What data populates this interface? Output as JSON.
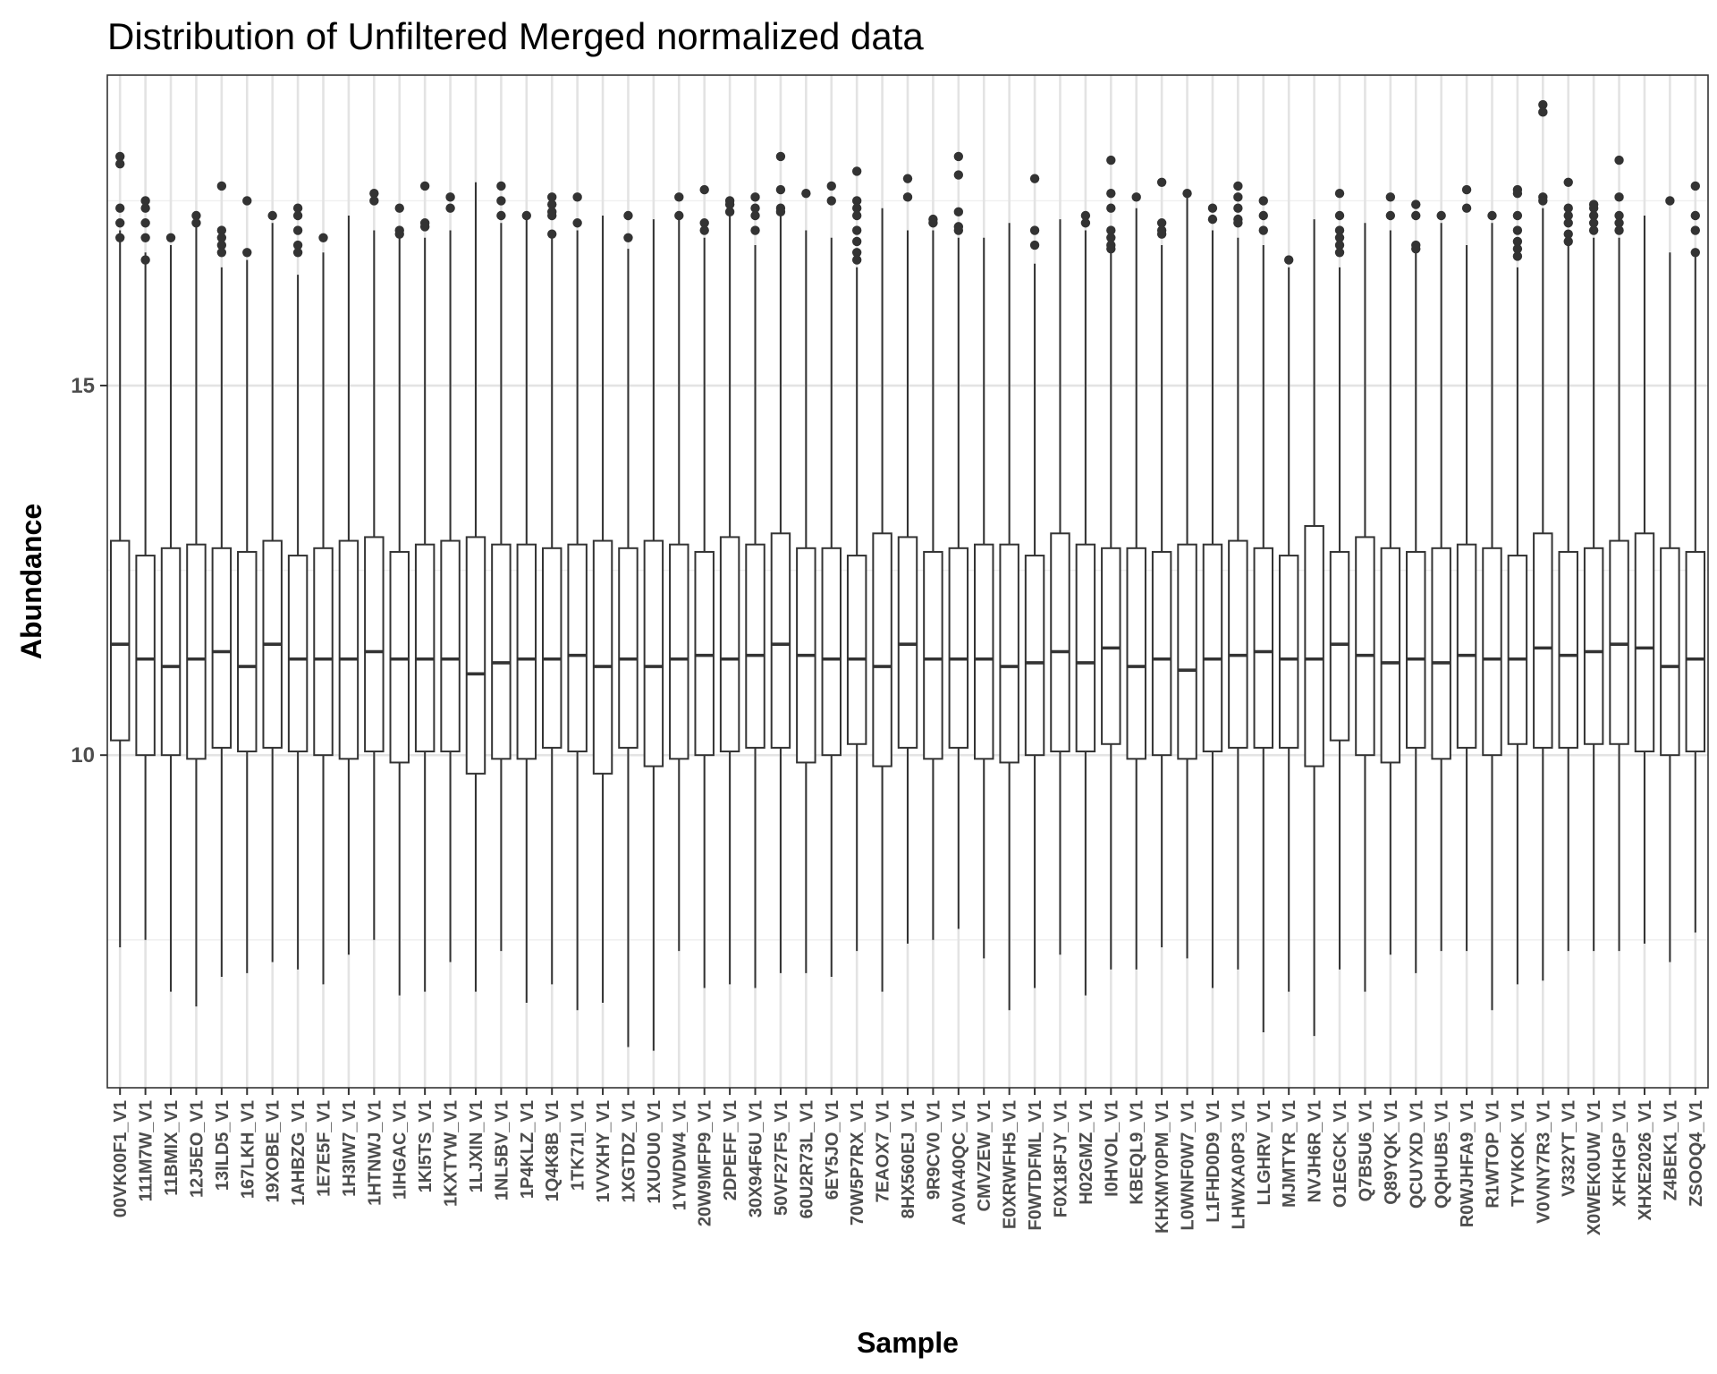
{
  "chart_data": {
    "type": "boxplot",
    "title": "Distribution of Unfiltered Merged normalized data",
    "xlabel": "Sample",
    "ylabel": "Abundance",
    "ylim": [
      5.5,
      19.2
    ],
    "yticks": [
      10,
      15
    ],
    "grid": true,
    "categories": [
      "00VK00F1_V1",
      "111M7W_V1",
      "11BMIX_V1",
      "12J5EO_V1",
      "13ILD5_V1",
      "167LKH_V1",
      "19XOBE_V1",
      "1AHBZG_V1",
      "1E7E5F_V1",
      "1H3IW7_V1",
      "1HTNWJ_V1",
      "1IHGAC_V1",
      "1KI5TS_V1",
      "1KXTYW_V1",
      "1LJXIN_V1",
      "1NL5BV_V1",
      "1P4KLZ_V1",
      "1Q4K8B_V1",
      "1TK71I_V1",
      "1VVXHY_V1",
      "1XGTDZ_V1",
      "1XUOU0_V1",
      "1YWDW4_V1",
      "20W9MFP9_V1",
      "2DPEFF_V1",
      "30X94F6U_V1",
      "50VF27F5_V1",
      "60U2R73L_V1",
      "6EY5JO_V1",
      "70W5P7RX_V1",
      "7EAOX7_V1",
      "8HX560EJ_V1",
      "9R9CV0_V1",
      "A0VA40QC_V1",
      "CMVZEW_V1",
      "E0XRWFH5_V1",
      "F0WTDFML_V1",
      "F0X18FJY_V1",
      "H02GMZ_V1",
      "I0HVOL_V1",
      "KBEQL9_V1",
      "KHXMY0PM_V1",
      "L0WNF0W7_V1",
      "L1FHD0D9_V1",
      "LHWXA0P3_V1",
      "LLGHRV_V1",
      "MJMTYR_V1",
      "NVJH6R_V1",
      "O1EGCK_V1",
      "Q7B5U6_V1",
      "Q89YQK_V1",
      "QCUYXD_V1",
      "QQHUB5_V1",
      "R0WJHFA9_V1",
      "R1WTOP_V1",
      "TYVKOK_V1",
      "V0VNY7R3_V1",
      "V332YT_V1",
      "X0WEK0UW_V1",
      "XFKHGP_V1",
      "XHXE2026_V1",
      "Z4BEK1_V1",
      "ZSOOQ4_V1"
    ],
    "series": [
      {
        "stats": [
          {
            "low": 7.4,
            "q1": 10.2,
            "median": 11.5,
            "q3": 12.9,
            "high": 17.1,
            "outliers": [
              18.0,
              18.1,
              17.4,
              17.2,
              17.0
            ]
          },
          {
            "low": 7.5,
            "q1": 10.0,
            "median": 11.3,
            "q3": 12.7,
            "high": 16.8,
            "outliers": [
              17.5,
              17.4,
              17.2,
              17.0,
              16.7
            ]
          },
          {
            "low": 6.8,
            "q1": 10.0,
            "median": 11.2,
            "q3": 12.8,
            "high": 16.9,
            "outliers": [
              17.0
            ]
          },
          {
            "low": 6.6,
            "q1": 9.95,
            "median": 11.3,
            "q3": 12.85,
            "high": 17.2,
            "outliers": [
              17.3,
              17.2
            ]
          },
          {
            "low": 7.0,
            "q1": 10.1,
            "median": 11.4,
            "q3": 12.8,
            "high": 16.6,
            "outliers": [
              17.7,
              17.1,
              17.0,
              16.9,
              16.8
            ]
          },
          {
            "low": 7.05,
            "q1": 10.05,
            "median": 11.2,
            "q3": 12.75,
            "high": 16.7,
            "outliers": [
              17.5,
              16.8
            ]
          },
          {
            "low": 7.2,
            "q1": 10.1,
            "median": 11.5,
            "q3": 12.9,
            "high": 17.2,
            "outliers": [
              17.3
            ]
          },
          {
            "low": 7.1,
            "q1": 10.05,
            "median": 11.3,
            "q3": 12.7,
            "high": 16.5,
            "outliers": [
              17.4,
              17.3,
              17.1,
              16.9,
              16.8
            ]
          },
          {
            "low": 6.9,
            "q1": 10.0,
            "median": 11.3,
            "q3": 12.8,
            "high": 16.8,
            "outliers": [
              17.0
            ]
          },
          {
            "low": 7.3,
            "q1": 9.95,
            "median": 11.3,
            "q3": 12.9,
            "high": 17.3,
            "outliers": []
          },
          {
            "low": 7.5,
            "q1": 10.05,
            "median": 11.4,
            "q3": 12.95,
            "high": 17.1,
            "outliers": [
              17.6,
              17.5
            ]
          },
          {
            "low": 6.75,
            "q1": 9.9,
            "median": 11.3,
            "q3": 12.75,
            "high": 17.1,
            "outliers": [
              17.4,
              17.1,
              17.05
            ]
          },
          {
            "low": 6.8,
            "q1": 10.05,
            "median": 11.3,
            "q3": 12.85,
            "high": 17.0,
            "outliers": [
              17.7,
              17.2,
              17.15
            ]
          },
          {
            "low": 7.2,
            "q1": 10.05,
            "median": 11.3,
            "q3": 12.9,
            "high": 17.1,
            "outliers": [
              17.55,
              17.4
            ]
          },
          {
            "low": 6.8,
            "q1": 9.75,
            "median": 11.1,
            "q3": 12.95,
            "high": 17.75,
            "outliers": []
          },
          {
            "low": 7.35,
            "q1": 9.95,
            "median": 11.25,
            "q3": 12.85,
            "high": 17.2,
            "outliers": [
              17.7,
              17.5,
              17.3
            ]
          },
          {
            "low": 6.65,
            "q1": 9.95,
            "median": 11.3,
            "q3": 12.85,
            "high": 17.25,
            "outliers": [
              17.3
            ]
          },
          {
            "low": 6.9,
            "q1": 10.1,
            "median": 11.3,
            "q3": 12.8,
            "high": 17.0,
            "outliers": [
              17.55,
              17.45,
              17.35,
              17.3,
              17.05
            ]
          },
          {
            "low": 6.55,
            "q1": 10.05,
            "median": 11.35,
            "q3": 12.85,
            "high": 17.1,
            "outliers": [
              17.55,
              17.2
            ]
          },
          {
            "low": 6.65,
            "q1": 9.75,
            "median": 11.2,
            "q3": 12.9,
            "high": 17.3,
            "outliers": []
          },
          {
            "low": 6.05,
            "q1": 10.1,
            "median": 11.3,
            "q3": 12.8,
            "high": 16.85,
            "outliers": [
              17.3,
              17.0
            ]
          },
          {
            "low": 6.0,
            "q1": 9.85,
            "median": 11.2,
            "q3": 12.9,
            "high": 17.25,
            "outliers": []
          },
          {
            "low": 7.35,
            "q1": 9.95,
            "median": 11.3,
            "q3": 12.85,
            "high": 17.3,
            "outliers": [
              17.55,
              17.3
            ]
          },
          {
            "low": 6.85,
            "q1": 10.0,
            "median": 11.35,
            "q3": 12.75,
            "high": 17.0,
            "outliers": [
              17.65,
              17.2,
              17.1
            ]
          },
          {
            "low": 6.9,
            "q1": 10.05,
            "median": 11.3,
            "q3": 12.95,
            "high": 17.3,
            "outliers": [
              17.5,
              17.45,
              17.35
            ]
          },
          {
            "low": 6.85,
            "q1": 10.1,
            "median": 11.35,
            "q3": 12.85,
            "high": 16.9,
            "outliers": [
              17.55,
              17.4,
              17.3,
              17.1
            ]
          },
          {
            "low": 7.05,
            "q1": 10.1,
            "median": 11.5,
            "q3": 13.0,
            "high": 17.3,
            "outliers": [
              18.1,
              17.65,
              17.4,
              17.35
            ]
          },
          {
            "low": 7.05,
            "q1": 9.9,
            "median": 11.35,
            "q3": 12.8,
            "high": 17.1,
            "outliers": [
              17.6
            ]
          },
          {
            "low": 7.0,
            "q1": 10.0,
            "median": 11.3,
            "q3": 12.8,
            "high": 17.0,
            "outliers": [
              17.7,
              17.5
            ]
          },
          {
            "low": 7.35,
            "q1": 10.15,
            "median": 11.3,
            "q3": 12.7,
            "high": 16.6,
            "outliers": [
              17.9,
              17.5,
              17.4,
              17.3,
              17.1,
              16.95,
              16.8,
              16.7
            ]
          },
          {
            "low": 6.8,
            "q1": 9.85,
            "median": 11.2,
            "q3": 13.0,
            "high": 17.4,
            "outliers": []
          },
          {
            "low": 7.45,
            "q1": 10.1,
            "median": 11.5,
            "q3": 12.95,
            "high": 17.1,
            "outliers": [
              17.8,
              17.55
            ]
          },
          {
            "low": 7.5,
            "q1": 9.95,
            "median": 11.3,
            "q3": 12.75,
            "high": 17.1,
            "outliers": [
              17.25,
              17.2
            ]
          },
          {
            "low": 7.65,
            "q1": 10.1,
            "median": 11.3,
            "q3": 12.8,
            "high": 17.0,
            "outliers": [
              18.1,
              17.85,
              17.35,
              17.15,
              17.1
            ]
          },
          {
            "low": 7.25,
            "q1": 9.95,
            "median": 11.3,
            "q3": 12.85,
            "high": 17.0,
            "outliers": []
          },
          {
            "low": 6.55,
            "q1": 9.9,
            "median": 11.2,
            "q3": 12.85,
            "high": 17.2,
            "outliers": []
          },
          {
            "low": 6.85,
            "q1": 10.0,
            "median": 11.25,
            "q3": 12.7,
            "high": 16.65,
            "outliers": [
              17.8,
              17.1,
              16.9
            ]
          },
          {
            "low": 7.3,
            "q1": 10.05,
            "median": 11.4,
            "q3": 13.0,
            "high": 17.25,
            "outliers": []
          },
          {
            "low": 6.75,
            "q1": 10.05,
            "median": 11.25,
            "q3": 12.85,
            "high": 17.1,
            "outliers": [
              17.3,
              17.2
            ]
          },
          {
            "low": 7.1,
            "q1": 10.15,
            "median": 11.45,
            "q3": 12.8,
            "high": 16.8,
            "outliers": [
              18.05,
              17.6,
              17.4,
              17.1,
              17.0,
              16.9,
              16.85
            ]
          },
          {
            "low": 7.1,
            "q1": 9.95,
            "median": 11.2,
            "q3": 12.8,
            "high": 17.4,
            "outliers": [
              17.55
            ]
          },
          {
            "low": 7.4,
            "q1": 10.0,
            "median": 11.3,
            "q3": 12.75,
            "high": 16.9,
            "outliers": [
              17.75,
              17.2,
              17.1,
              17.05
            ]
          },
          {
            "low": 7.25,
            "q1": 9.95,
            "median": 11.15,
            "q3": 12.85,
            "high": 17.55,
            "outliers": [
              17.6
            ]
          },
          {
            "low": 6.85,
            "q1": 10.05,
            "median": 11.3,
            "q3": 12.85,
            "high": 17.1,
            "outliers": [
              17.4,
              17.25
            ]
          },
          {
            "low": 7.1,
            "q1": 10.1,
            "median": 11.35,
            "q3": 12.9,
            "high": 17.0,
            "outliers": [
              17.7,
              17.55,
              17.4,
              17.25,
              17.2
            ]
          },
          {
            "low": 6.25,
            "q1": 10.1,
            "median": 11.4,
            "q3": 12.8,
            "high": 16.9,
            "outliers": [
              17.5,
              17.3,
              17.1
            ]
          },
          {
            "low": 6.8,
            "q1": 10.1,
            "median": 11.3,
            "q3": 12.7,
            "high": 16.6,
            "outliers": [
              16.7
            ]
          },
          {
            "low": 6.2,
            "q1": 9.85,
            "median": 11.3,
            "q3": 13.1,
            "high": 17.25,
            "outliers": []
          },
          {
            "low": 7.1,
            "q1": 10.2,
            "median": 11.5,
            "q3": 12.75,
            "high": 16.6,
            "outliers": [
              17.6,
              17.3,
              17.1,
              17.0,
              16.9,
              16.8
            ]
          },
          {
            "low": 6.8,
            "q1": 10.0,
            "median": 11.35,
            "q3": 12.95,
            "high": 17.2,
            "outliers": []
          },
          {
            "low": 7.3,
            "q1": 9.9,
            "median": 11.25,
            "q3": 12.8,
            "high": 17.1,
            "outliers": [
              17.55,
              17.3
            ]
          },
          {
            "low": 7.05,
            "q1": 10.1,
            "median": 11.3,
            "q3": 12.75,
            "high": 16.8,
            "outliers": [
              17.45,
              17.3,
              16.9,
              16.85
            ]
          },
          {
            "low": 7.35,
            "q1": 9.95,
            "median": 11.25,
            "q3": 12.8,
            "high": 17.2,
            "outliers": [
              17.3
            ]
          },
          {
            "low": 7.35,
            "q1": 10.1,
            "median": 11.35,
            "q3": 12.85,
            "high": 16.9,
            "outliers": [
              17.65,
              17.4
            ]
          },
          {
            "low": 6.55,
            "q1": 10.0,
            "median": 11.3,
            "q3": 12.8,
            "high": 17.2,
            "outliers": [
              17.3
            ]
          },
          {
            "low": 6.9,
            "q1": 10.15,
            "median": 11.3,
            "q3": 12.7,
            "high": 16.6,
            "outliers": [
              17.65,
              17.6,
              17.3,
              17.1,
              16.95,
              16.85,
              16.75
            ]
          },
          {
            "low": 6.95,
            "q1": 10.1,
            "median": 11.45,
            "q3": 13.0,
            "high": 17.4,
            "outliers": [
              18.8,
              18.7,
              17.55,
              17.5
            ]
          },
          {
            "low": 7.35,
            "q1": 10.1,
            "median": 11.35,
            "q3": 12.75,
            "high": 17.0,
            "outliers": [
              17.75,
              17.4,
              17.3,
              17.2,
              17.05,
              16.95
            ]
          },
          {
            "low": 7.35,
            "q1": 10.15,
            "median": 11.4,
            "q3": 12.8,
            "high": 17.0,
            "outliers": [
              17.45,
              17.4,
              17.3,
              17.2,
              17.1
            ]
          },
          {
            "low": 7.35,
            "q1": 10.15,
            "median": 11.5,
            "q3": 12.9,
            "high": 17.0,
            "outliers": [
              18.05,
              17.55,
              17.3,
              17.2,
              17.1
            ]
          },
          {
            "low": 7.45,
            "q1": 10.05,
            "median": 11.45,
            "q3": 13.0,
            "high": 17.3,
            "outliers": []
          },
          {
            "low": 7.2,
            "q1": 10.0,
            "median": 11.2,
            "q3": 12.8,
            "high": 16.8,
            "outliers": [
              17.5
            ]
          },
          {
            "low": 7.6,
            "q1": 10.05,
            "median": 11.3,
            "q3": 12.75,
            "high": 16.8,
            "outliers": [
              17.7,
              17.3,
              17.1,
              16.8
            ]
          }
        ]
      }
    ]
  }
}
